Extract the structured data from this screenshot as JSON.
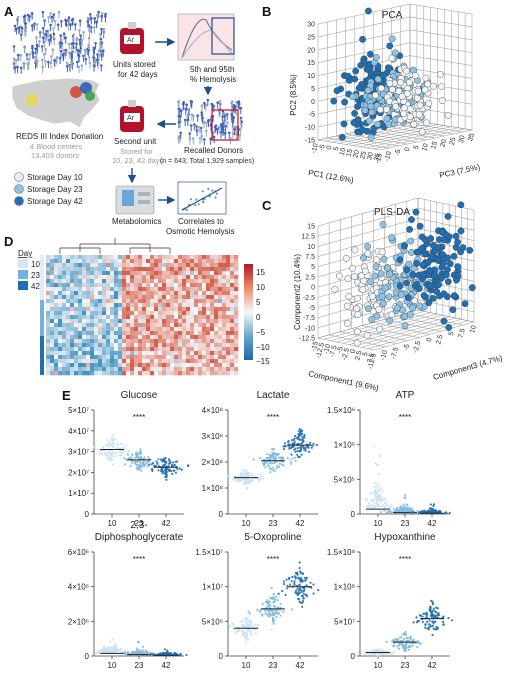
{
  "panel_labels": {
    "a": "A",
    "b": "B",
    "c": "C",
    "d": "D",
    "e": "E"
  },
  "colors": {
    "day10": "#d6e6f4",
    "day23": "#7fb9e0",
    "day42": "#1f6fb2",
    "heat_hi": "#b2182b",
    "heat_lo": "#2166ac",
    "arrow": "#1f4e8c"
  },
  "panel_a": {
    "units_stored": "Units stored",
    "for_42_days": "for 42 days",
    "hemolysis_line1": "5th and 95th",
    "hemolysis_line2": "% Hemolysis",
    "reds_title": "REDS III Index Donation",
    "blood_centers": "4 Blood centers",
    "donors": "13,403 donors",
    "second_unit": "Second unit",
    "stored_for": "Stored for",
    "stored_days": "10, 23, 42 days",
    "recalled": "Recalled Donors",
    "recalled_n": "(n = 643; Total 1,929 samples)",
    "legend": [
      "Storage Day 10",
      "Storage Day 23",
      "Storage Day 42"
    ],
    "metabolomics": "Metabolomics",
    "correlates_line1": "Correlates to",
    "correlates_line2": "Osmotic Hemolysis",
    "bag_label": "Ar"
  },
  "panel_b": {
    "title": "PCA",
    "y_label": "PC2 (8.5%)",
    "x_label": "PC1 (12.6%)",
    "z_label": "PC3 (7.5%)",
    "y_ticks": [
      "30",
      "25",
      "20",
      "15",
      "10",
      "5",
      "0",
      "-5",
      "-10",
      "-15"
    ],
    "x_ticks": [
      "-10",
      "-5",
      "0",
      "5",
      "10",
      "15",
      "20",
      "25",
      "30",
      "35"
    ],
    "z_ticks": [
      "-15",
      "-10",
      "-5",
      "0",
      "5",
      "10",
      "15",
      "20",
      "25",
      "30",
      "35"
    ]
  },
  "panel_c": {
    "title": "PLS-DA",
    "y_label": "Component2 (10.4%)",
    "x_label": "Component1 (9.6%)",
    "z_label": "Component3 (4.7%)",
    "y_ticks": [
      "15",
      "12.5",
      "10",
      "7.5",
      "5",
      "2.5",
      "0",
      "-2.5",
      "-5",
      "-7.5",
      "-10",
      "-12.5"
    ],
    "x_ticks": [
      "-15",
      "-12.5",
      "-10",
      "-7.5",
      "-5",
      "-2.5",
      "0",
      "2.5",
      "5",
      "7.5"
    ],
    "z_ticks": [
      "-12.5",
      "-10",
      "-7.5",
      "-5",
      "-2.5",
      "0",
      "2.5",
      "5",
      "7.5",
      "10"
    ]
  },
  "panel_d": {
    "legend_title": "Day",
    "legend_items": [
      "10",
      "23",
      "42"
    ],
    "colorbar_ticks": [
      "15",
      "10",
      "5",
      "0",
      "−5",
      "−10",
      "−15"
    ]
  },
  "chart_data": [
    {
      "type": "scatter",
      "title": "Glucose",
      "categories": [
        "10",
        "23",
        "42"
      ],
      "y_ticks": [
        "5×10⁷",
        "4×10⁷",
        "3×10⁷",
        "2×10⁷",
        "1×10⁷",
        "0"
      ],
      "ylim": [
        0,
        50000000
      ],
      "medians": [
        31000000,
        26000000,
        22500000
      ],
      "spread": [
        5000000,
        4000000,
        4000000
      ],
      "significance": "****"
    },
    {
      "type": "scatter",
      "title": "Lactate",
      "categories": [
        "10",
        "23",
        "42"
      ],
      "y_ticks": [
        "4×10⁸",
        "3×10⁸",
        "2×10⁸",
        "1×10⁸",
        "0"
      ],
      "ylim": [
        0,
        400000000
      ],
      "medians": [
        140000000,
        205000000,
        265000000
      ],
      "spread": [
        25000000,
        35000000,
        45000000
      ],
      "significance": "****"
    },
    {
      "type": "scatter",
      "title": "ATP",
      "categories": [
        "10",
        "23",
        "42"
      ],
      "y_ticks": [
        "1.5×10⁶",
        "1×10⁶",
        "5×10⁵",
        "0"
      ],
      "ylim": [
        0,
        1500000
      ],
      "medians": [
        70000,
        20000,
        10000
      ],
      "spread": [
        250000,
        80000,
        40000
      ],
      "significance": "****"
    },
    {
      "type": "scatter",
      "title": "2,3-\nDiphosphoglycerate",
      "categories": [
        "10",
        "23",
        "42"
      ],
      "y_ticks": [
        "6×10⁶",
        "4×10⁶",
        "2×10⁶",
        "0"
      ],
      "ylim": [
        0,
        6000000
      ],
      "medians": [
        150000,
        80000,
        40000
      ],
      "spread": [
        400000,
        200000,
        120000
      ],
      "significance": "****"
    },
    {
      "type": "scatter",
      "title": "5-Oxoproline",
      "categories": [
        "10",
        "23",
        "42"
      ],
      "y_ticks": [
        "1.5×10⁷",
        "1×10⁷",
        "5×10⁶",
        "0"
      ],
      "ylim": [
        0,
        15000000
      ],
      "medians": [
        4000000,
        6800000,
        10000000
      ],
      "spread": [
        1200000,
        1600000,
        2200000
      ],
      "significance": "****"
    },
    {
      "type": "scatter",
      "title": "Hypoxanthine",
      "categories": [
        "10",
        "23",
        "42"
      ],
      "y_ticks": [
        "1.5×10⁸",
        "1×10⁸",
        "5×10⁷",
        "0"
      ],
      "ylim": [
        0,
        150000000
      ],
      "medians": [
        5000000,
        20000000,
        54000000
      ],
      "spread": [
        4000000,
        12000000,
        20000000
      ],
      "significance": "****"
    }
  ],
  "icons": [
    "blood-bag-icon",
    "hemolysis-plot-icon",
    "usa-map-icon",
    "mass-spectrometer-icon",
    "correlation-plot-icon"
  ]
}
